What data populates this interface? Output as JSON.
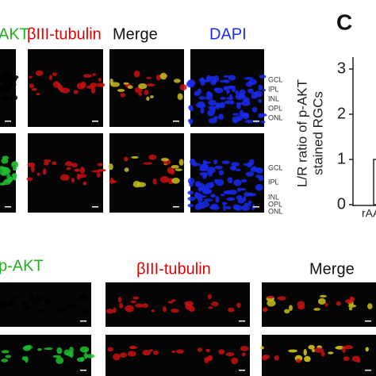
{
  "top_headers": {
    "akt": "AKT",
    "tubulin": "βIII-tubulin",
    "merge": "Merge",
    "dapi": "DAPI"
  },
  "layers_row1": [
    "GCL",
    "IPL",
    "INL",
    "OPL",
    "ONL"
  ],
  "layers_row2": [
    "GCL",
    "IPL",
    "INL",
    "OPL",
    "ONL"
  ],
  "panel_c": {
    "label": "C",
    "y_label": [
      "L/R ratio of p-AKT",
      "stained RGCs"
    ],
    "ylim": [
      0,
      3.2
    ],
    "yticks": [
      0,
      1,
      2,
      3
    ],
    "category": "rAA",
    "bar_value": 1
  },
  "bottom_headers": {
    "pakt": "p-AKT",
    "tubulin": "βIII-tubulin",
    "merge": "Merge"
  }
}
